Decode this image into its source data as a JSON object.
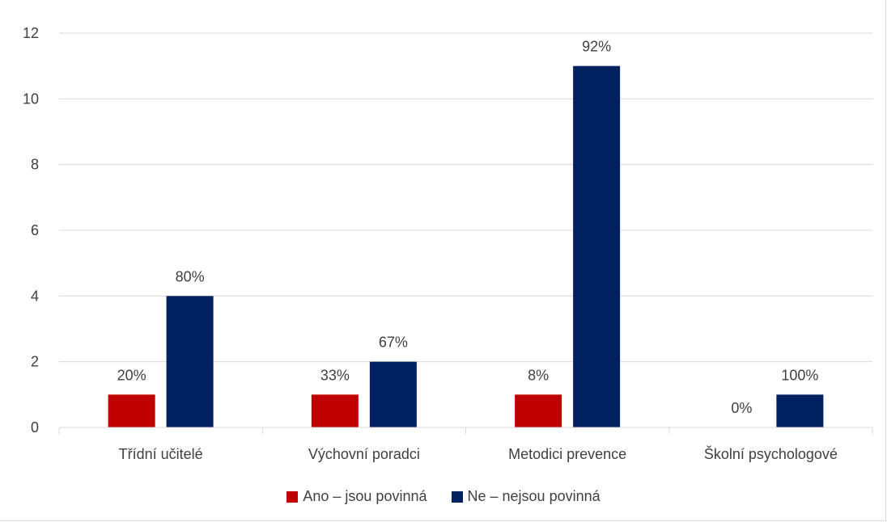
{
  "chart_data": {
    "type": "bar",
    "categories": [
      "Třídní učitelé",
      "Výchovní poradci",
      "Metodici prevence",
      "Školní psychologové"
    ],
    "series": [
      {
        "name": "Ano – jsou povinná",
        "color": "#c00000",
        "values": [
          1,
          1,
          1,
          0
        ],
        "labels": [
          "20%",
          "33%",
          "8%",
          "0%"
        ]
      },
      {
        "name": "Ne – nejsou povinná",
        "color": "#002060",
        "values": [
          4,
          2,
          11,
          1
        ],
        "labels": [
          "80%",
          "67%",
          "92%",
          "100%"
        ]
      }
    ],
    "ylim": [
      0,
      12
    ],
    "yticks": [
      "0",
      "2",
      "4",
      "6",
      "8",
      "10",
      "12"
    ],
    "grid": true,
    "legend": "bottom"
  }
}
